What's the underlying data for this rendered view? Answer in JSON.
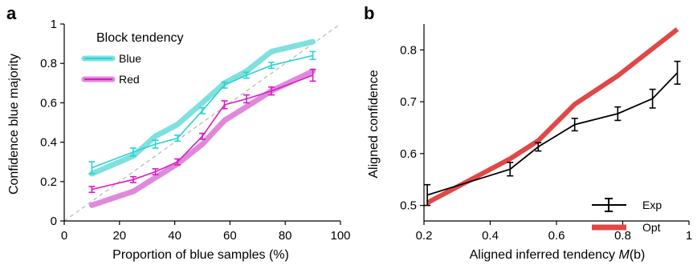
{
  "chart_data": [
    {
      "type": "line",
      "panel_label": "a",
      "xlabel": "Proportion of blue samples (%)",
      "ylabel": "Confidence blue majority",
      "xlim": [
        0,
        100
      ],
      "ylim": [
        0,
        1
      ],
      "xticks": [
        0,
        20,
        40,
        60,
        80,
        100
      ],
      "yticks": [
        0,
        0.2,
        0.4,
        0.6,
        0.8,
        1
      ],
      "xtick_labels": [
        "0",
        "20",
        "40",
        "60",
        "80",
        "100"
      ],
      "ytick_labels": [
        "0",
        "0.2",
        "0.4",
        "0.6",
        "0.8",
        "1"
      ],
      "legend_title": "Block tendency",
      "legend_position": "top-left",
      "identity_line": true,
      "x": [
        10,
        25,
        33,
        41,
        50,
        58,
        66,
        75,
        90
      ],
      "series": [
        {
          "name": "Blue",
          "color": "#2ad3d0",
          "thick_color": "#7fe0e0",
          "values": [
            0.27,
            0.35,
            0.39,
            0.42,
            0.56,
            0.69,
            0.74,
            0.79,
            0.84
          ],
          "errors": [
            0.03,
            0.02,
            0.02,
            0.015,
            0.015,
            0.015,
            0.015,
            0.015,
            0.02
          ],
          "model": [
            0.24,
            0.33,
            0.43,
            0.49,
            0.6,
            0.7,
            0.76,
            0.86,
            0.91
          ]
        },
        {
          "name": "Red",
          "color": "#d81cc8",
          "thick_color": "#e089dc",
          "values": [
            0.16,
            0.21,
            0.25,
            0.3,
            0.43,
            0.59,
            0.62,
            0.66,
            0.74
          ],
          "errors": [
            0.015,
            0.015,
            0.015,
            0.015,
            0.015,
            0.02,
            0.02,
            0.02,
            0.03
          ],
          "model": [
            0.08,
            0.15,
            0.22,
            0.29,
            0.39,
            0.51,
            0.58,
            0.66,
            0.76
          ]
        }
      ]
    },
    {
      "type": "line",
      "panel_label": "b",
      "xlabel_text": "Aligned inferred tendency ",
      "xlabel_italic": "M",
      "xlabel_paren": "(b)",
      "ylabel": "Aligned confidence",
      "xlim": [
        0.2,
        1.0
      ],
      "ylim": [
        0.47,
        0.85
      ],
      "xticks": [
        0.2,
        0.4,
        0.6,
        0.8,
        1.0
      ],
      "yticks": [
        0.5,
        0.6,
        0.7,
        0.8
      ],
      "xtick_labels": [
        "0.2",
        "0.4",
        "0.6",
        "0.8",
        "1"
      ],
      "ytick_labels": [
        "0.5",
        "0.6",
        "0.7",
        "0.8"
      ],
      "legend_position": "bottom-right",
      "series": [
        {
          "name": "Exp",
          "color": "#000000",
          "x": [
            0.21,
            0.31,
            0.46,
            0.545,
            0.655,
            0.785,
            0.89,
            0.965
          ],
          "values": [
            0.52,
            0.54,
            0.57,
            0.613,
            0.656,
            0.677,
            0.706,
            0.756
          ],
          "errors": [
            0.02,
            0.0,
            0.013,
            0.008,
            0.012,
            0.013,
            0.018,
            0.022
          ]
        },
        {
          "name": "Opt",
          "color": "#e04848",
          "x": [
            0.21,
            0.46,
            0.545,
            0.655,
            0.785,
            0.965
          ],
          "values": [
            0.505,
            0.59,
            0.625,
            0.695,
            0.75,
            0.84
          ]
        }
      ]
    }
  ]
}
